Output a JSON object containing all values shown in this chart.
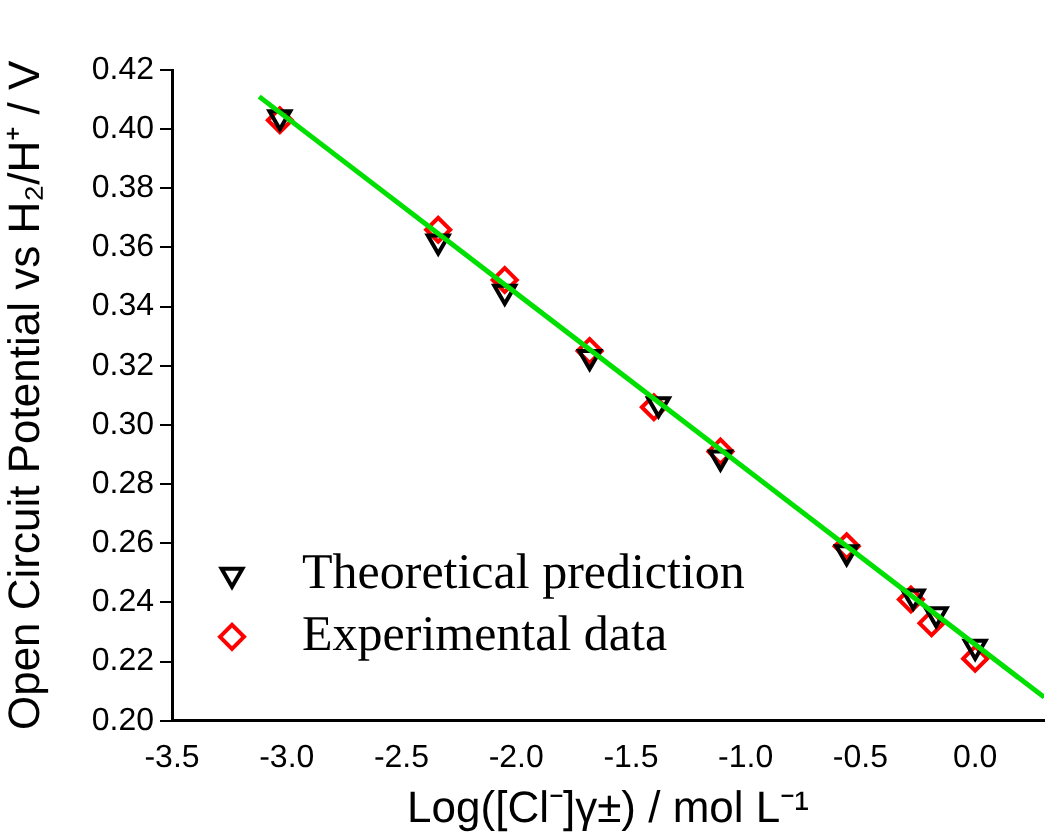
{
  "chart_data": {
    "type": "scatter",
    "xlabel": "Log([Cl⁻]γ±) / mol L⁻¹",
    "ylabel": "Open Circuit Potential vs H₂/H⁺ / V",
    "xlim": [
      -3.5,
      0.3
    ],
    "xticks": [
      -3.5,
      {
        "value": -3,
        "label": "-3.0"
      },
      -2.5,
      {
        "value": -2,
        "label": "-2.0"
      },
      -1.5,
      {
        "value": -1,
        "label": "-1.0"
      },
      -0.5,
      {
        "value": 0,
        "label": "0.0"
      }
    ],
    "ylim": [
      0.2,
      0.42
    ],
    "yticks": [
      {
        "value": 0.2,
        "label": "0.20"
      },
      0.22,
      0.24,
      0.26,
      0.28,
      {
        "value": 0.3,
        "label": "0.30"
      },
      0.32,
      0.34,
      0.36,
      0.38,
      {
        "value": 0.4,
        "label": "0.40"
      },
      0.42
    ],
    "grid": false,
    "legend": "bottom left",
    "series": [
      {
        "type": "line",
        "color": "#00e000",
        "marker": "none",
        "x": [
          -3.12,
          0.3
        ],
        "values": [
          0.411,
          0.208
        ]
      },
      {
        "name": "Theoretical prediction",
        "color": "#000000",
        "marker": "triangle",
        "x": [
          -3.03,
          -2.34,
          -2.05,
          -1.68,
          -1.38,
          -1.11,
          -0.56,
          -0.27,
          -0.17,
          0.0
        ],
        "values": [
          0.404,
          0.362,
          0.345,
          0.323,
          0.307,
          0.289,
          0.257,
          0.242,
          0.236,
          0.225
        ]
      },
      {
        "name": "Experimental data",
        "color": "#ff0000",
        "marker": "diamond",
        "x": [
          -3.03,
          -2.34,
          -2.05,
          -1.68,
          -1.4,
          -1.11,
          -0.56,
          -0.28,
          -0.19,
          0.0
        ],
        "values": [
          0.403,
          0.366,
          0.349,
          0.325,
          0.306,
          0.291,
          0.259,
          0.241,
          0.233,
          0.221
        ]
      }
    ]
  }
}
